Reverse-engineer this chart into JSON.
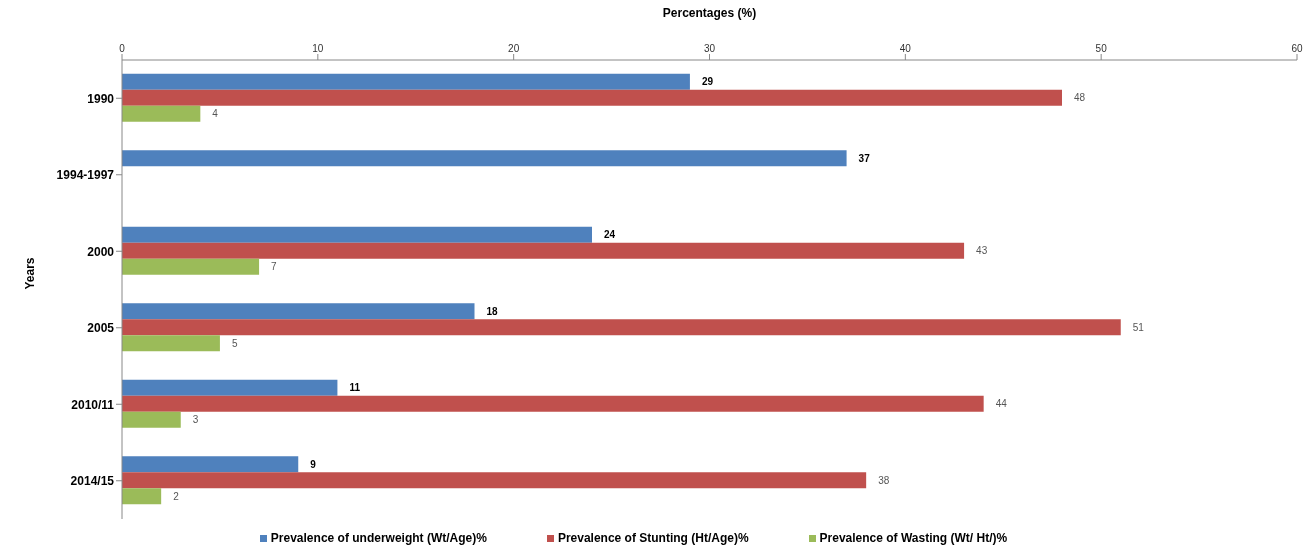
{
  "chart_data": {
    "type": "bar",
    "orientation": "horizontal",
    "xlabel": "Percentages (%)",
    "ylabel": "Years",
    "categories": [
      "1990",
      "1994-1997",
      "2000",
      "2005",
      "2010/11",
      "2014/15"
    ],
    "series": [
      {
        "name": "Prevalence of underweight (Wt/Age)%",
        "color": "#4f81bd",
        "values": [
          29,
          37,
          24,
          18,
          11,
          9
        ]
      },
      {
        "name": "Prevalence of Stunting (Ht/Age)%",
        "color": "#c0504d",
        "values": [
          48,
          null,
          43,
          51,
          44,
          38
        ]
      },
      {
        "name": "Prevalence of Wasting (Wt/ Ht/)%",
        "color": "#9bbb59",
        "values": [
          4,
          null,
          7,
          5,
          3,
          2
        ]
      }
    ],
    "xlim": [
      0,
      60
    ],
    "xticks": [
      0,
      10,
      20,
      30,
      40,
      50,
      60
    ],
    "grid": false,
    "legend": "bottom",
    "data_labels": true
  }
}
